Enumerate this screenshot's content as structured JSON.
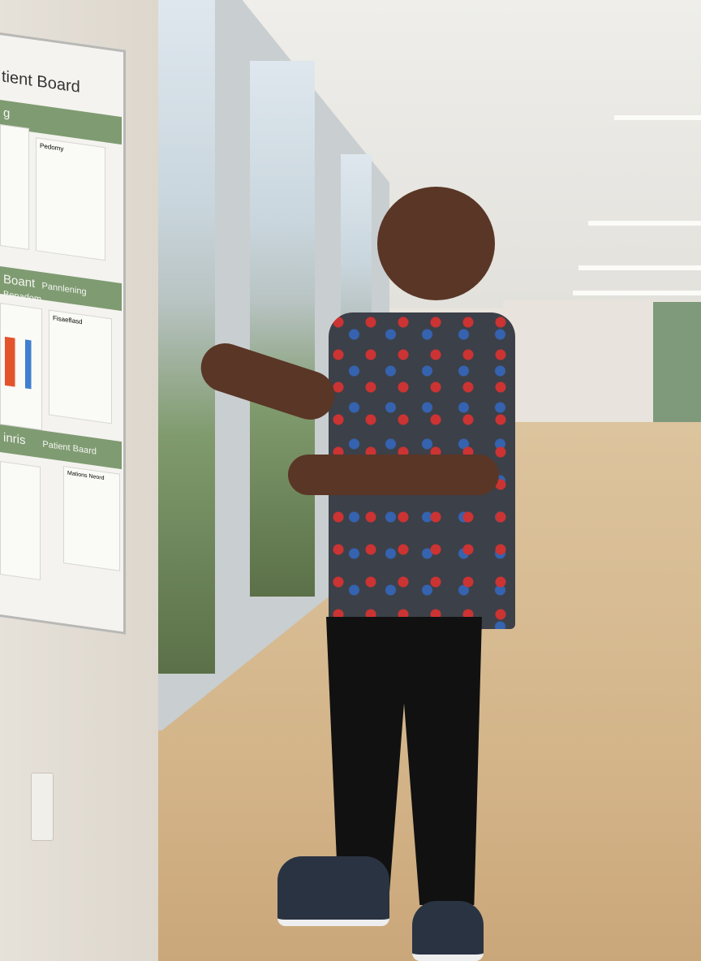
{
  "scene": {
    "description_tags": [
      "clinic-hallway",
      "rehab-gym",
      "patient-board",
      "clinician"
    ],
    "colors": {
      "board_band": "#7f9b72",
      "floor": "#d4b58a",
      "scrubs": "#3c4048"
    }
  },
  "board": {
    "title": "tient Board",
    "bands": [
      "g",
      "Boant",
      "Pannlening Benadom",
      "inris",
      "Patient Baard"
    ],
    "papers": [
      "Pedomy",
      "Fisaeflasd",
      "Mations Neord"
    ]
  }
}
